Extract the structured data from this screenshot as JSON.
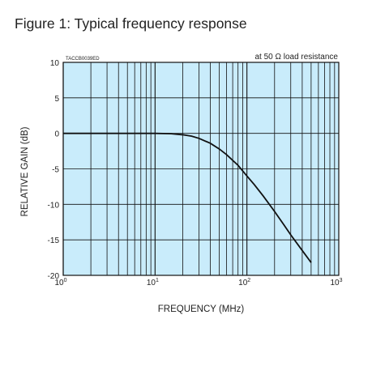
{
  "figure": {
    "title": "Figure 1: Typical frequency response",
    "code": "TACCB0039ED",
    "note": "at 50 Ω load resistance"
  },
  "chart_data": {
    "type": "line",
    "xlabel": "FREQUENCY (MHz)",
    "ylabel": "RELATIVE GAIN (dB)",
    "x_scale": "log",
    "xlim": [
      1,
      1000
    ],
    "ylim": [
      -20,
      10
    ],
    "x_tick_labels": [
      {
        "base": "10",
        "exp": "0",
        "value": 1
      },
      {
        "base": "10",
        "exp": "1",
        "value": 10
      },
      {
        "base": "10",
        "exp": "2",
        "value": 100
      },
      {
        "base": "10",
        "exp": "3",
        "value": 1000
      }
    ],
    "y_ticks": [
      10,
      5,
      0,
      -5,
      -10,
      -15,
      -20
    ],
    "grid": true,
    "background_color": "#c9ecfb",
    "line_color": "#111111",
    "series": [
      {
        "x": [
          1,
          5,
          10,
          15,
          20,
          25,
          30,
          40,
          50,
          60,
          80,
          100,
          120,
          150,
          200,
          250,
          300,
          400,
          500
        ],
        "y": [
          0,
          0,
          0,
          -0.05,
          -0.2,
          -0.4,
          -0.7,
          -1.4,
          -2.2,
          -3.0,
          -4.5,
          -6.0,
          -7.2,
          -8.8,
          -11.0,
          -12.8,
          -14.3,
          -16.5,
          -18.2
        ]
      }
    ]
  }
}
